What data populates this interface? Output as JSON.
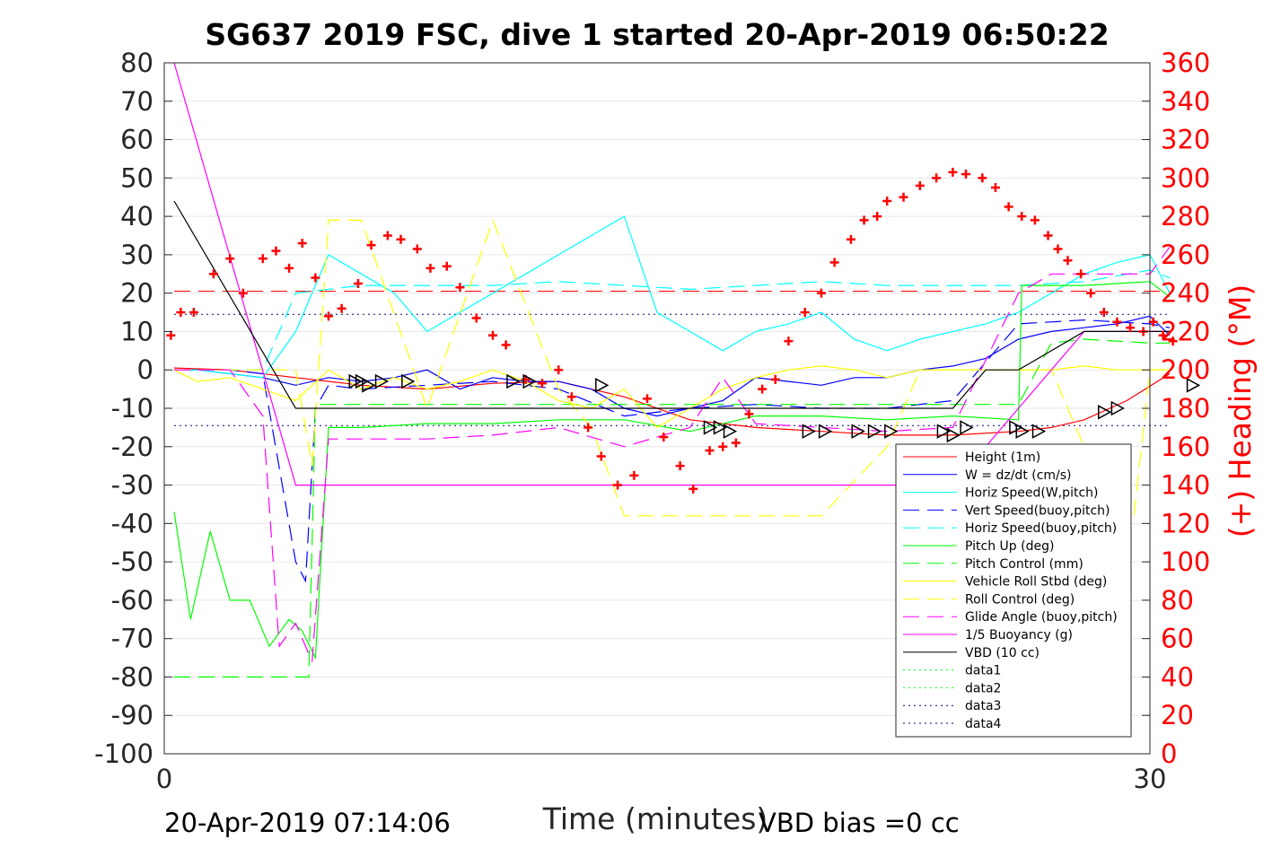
{
  "chart_data": {
    "type": "line",
    "title": "SG637 2019 FSC, dive 1 started 20-Apr-2019 06:50:22",
    "xlabel": "Time (minutes)",
    "ylabel_right": "(+) Heading (°M)",
    "xlim": [
      0,
      30
    ],
    "ylim_left": [
      -100,
      80
    ],
    "ylim_right": [
      0,
      360
    ],
    "x_ticks": [
      "0",
      "30"
    ],
    "y_ticks_left": [
      "80",
      "70",
      "60",
      "50",
      "40",
      "30",
      "20",
      "10",
      "0",
      "-10",
      "-20",
      "-30",
      "-40",
      "-50",
      "-60",
      "-70",
      "-80",
      "-90",
      "-100"
    ],
    "y_ticks_right": [
      "360",
      "340",
      "320",
      "300",
      "280",
      "260",
      "240",
      "220",
      "200",
      "180",
      "160",
      "140",
      "120",
      "100",
      "80",
      "60",
      "40",
      "20",
      "0"
    ],
    "grid": true,
    "legend_placement": "lower-right",
    "footer_left": "20-Apr-2019 07:14:06",
    "footer_right": "VBD bias =0 cc",
    "series": [
      {
        "name": "Height (1m)",
        "color": "#ff0000",
        "style": "solid",
        "x": [
          0.3,
          2,
          4,
          6,
          8,
          10,
          12,
          14,
          16,
          18,
          20,
          21,
          22,
          24,
          26,
          27,
          28,
          29.3,
          30.6
        ],
        "y": [
          0.5,
          0,
          -2,
          -4,
          -5,
          -3.5,
          -3,
          -7,
          -13,
          -15,
          -16,
          -16.5,
          -17,
          -17,
          -16,
          -15,
          -13,
          -8,
          -1
        ]
      },
      {
        "name": "W = dz/dt (cm/s)",
        "color": "#0000ff",
        "style": "solid",
        "x": [
          0.3,
          1,
          2,
          3,
          4,
          5,
          6,
          7,
          8,
          9,
          10,
          11,
          12,
          13,
          14,
          15,
          16,
          17,
          18,
          19,
          20,
          21,
          22,
          23,
          24,
          25,
          26,
          27,
          28,
          29,
          30,
          30.6
        ],
        "y": [
          0,
          0,
          -1,
          -2,
          -4,
          -2,
          -3,
          -2,
          0,
          -5,
          -2,
          -3,
          -3,
          -5,
          -10,
          -12,
          -10,
          -8,
          -2,
          -3,
          -4,
          -2,
          -2,
          0,
          1,
          3,
          8,
          10,
          11,
          12,
          14,
          9
        ]
      },
      {
        "name": "Horiz Speed(W,pitch)",
        "color": "#00ffff",
        "style": "solid",
        "x": [
          0.3,
          1,
          2,
          3,
          4,
          5,
          6,
          7,
          8,
          9,
          10,
          11,
          12,
          13,
          14,
          15,
          16,
          17,
          18,
          19,
          20,
          21,
          22,
          23,
          24,
          25,
          26,
          27,
          28,
          29,
          30,
          30.6
        ],
        "y": [
          0,
          0,
          -1,
          -2,
          10,
          30,
          25,
          20,
          10,
          15,
          20,
          25,
          30,
          35,
          40,
          15,
          10,
          5,
          10,
          12,
          15,
          8,
          5,
          8,
          10,
          12,
          15,
          20,
          25,
          28,
          30,
          20
        ]
      },
      {
        "name": "Vert Speed(buoy,pitch)",
        "color": "#0000ff",
        "style": "dashed",
        "x": [
          0.3,
          2,
          3,
          4,
          4.3,
          4.6,
          5,
          6,
          8,
          10,
          12,
          14,
          16,
          18,
          20,
          22,
          24,
          26,
          28,
          30,
          30.6
        ],
        "y": [
          0,
          0,
          -1,
          -50,
          -55,
          -10,
          -4,
          -5,
          -4,
          -3,
          -5,
          -12,
          -10,
          -9,
          -10,
          -10,
          -8,
          12,
          13,
          12,
          11
        ]
      },
      {
        "name": "Horiz Speed(buoy,pitch)",
        "color": "#00ffff",
        "style": "dashed",
        "x": [
          0.3,
          2,
          3,
          4,
          6,
          8,
          10,
          12,
          14,
          16,
          18,
          20,
          22,
          24,
          26,
          28,
          30,
          30.6
        ],
        "y": [
          0,
          0,
          0,
          20,
          22,
          22,
          22,
          23,
          22,
          21,
          22,
          23,
          22,
          22,
          22,
          23,
          26,
          24
        ]
      },
      {
        "name": "Pitch Up (deg)",
        "color": "#00ff00",
        "style": "solid",
        "x": [
          0.3,
          0.8,
          1.4,
          2,
          2.6,
          3.2,
          3.8,
          4.2,
          4.6,
          5,
          6,
          8,
          10,
          12,
          14,
          16,
          18,
          20,
          22,
          24,
          26,
          26.1,
          28,
          30,
          30.6
        ],
        "y": [
          -37,
          -65,
          -42,
          -60,
          -60,
          -72,
          -65,
          -68,
          -75,
          -15,
          -15,
          -14,
          -14,
          -13,
          -13,
          -16,
          -12,
          -12,
          -13,
          -12,
          -13,
          22,
          22,
          23,
          19
        ]
      },
      {
        "name": "Pitch Control (mm)",
        "color": "#00ff00",
        "style": "dashed",
        "x": [
          0.3,
          2,
          4,
          4.4,
          4.6,
          6,
          8,
          10,
          12,
          14,
          16,
          18,
          20,
          24,
          26,
          27,
          28,
          30,
          30.6
        ],
        "y": [
          -80,
          -80,
          -80,
          -80,
          -9,
          -9,
          -9,
          -9,
          -9,
          -9,
          -9,
          -9,
          -9,
          -9,
          -9,
          7,
          8,
          7,
          7
        ]
      },
      {
        "name": "Vehicle Roll Stbd (deg)",
        "color": "#ffff00",
        "style": "solid",
        "x": [
          0.3,
          1,
          2,
          3,
          4,
          5,
          6,
          7,
          8,
          9,
          10,
          11,
          12,
          13,
          14,
          15,
          16,
          17,
          18,
          19,
          20,
          21,
          22,
          23,
          24,
          25,
          26,
          27,
          28,
          29,
          30,
          30.6
        ],
        "y": [
          0,
          -3,
          -2,
          -5,
          -8,
          0,
          -5,
          -2,
          -5,
          -3,
          0,
          -3,
          -8,
          -10,
          -5,
          -15,
          -10,
          -5,
          -2,
          0,
          1,
          0,
          -2,
          0,
          0,
          0,
          0,
          0,
          1,
          0,
          0,
          0
        ]
      },
      {
        "name": "Roll Control (deg)",
        "color": "#ffff00",
        "style": "dashed",
        "x": [
          0.3,
          2,
          4,
          4.5,
          5,
          6,
          8,
          10,
          12,
          13,
          14,
          16,
          18,
          20,
          22,
          23,
          24,
          26,
          27,
          28,
          29,
          29.5,
          30,
          30.6
        ],
        "y": [
          0,
          0,
          0,
          -25,
          39,
          39,
          -10,
          39,
          -5,
          -15,
          -38,
          -38,
          -38,
          -38,
          -20,
          0,
          0,
          0,
          0,
          -20,
          -39,
          -39,
          0,
          0
        ]
      },
      {
        "name": "Glide Angle (buoy,pitch)",
        "color": "#ff00ff",
        "style": "dashed",
        "x": [
          0.3,
          2,
          3,
          3.5,
          4,
          4.5,
          5,
          6,
          8,
          10,
          12,
          14,
          16,
          17,
          18,
          20,
          22,
          24,
          26,
          27,
          28,
          29,
          30,
          30.6
        ],
        "y": [
          0,
          0,
          -12,
          -72,
          -66,
          -76,
          -18,
          -18,
          -18,
          -17,
          -15,
          -20,
          -15,
          -2,
          -14,
          -15,
          -16,
          -15,
          20,
          25,
          25,
          25,
          25,
          32
        ]
      },
      {
        "name": "1/5 Buoyancy (g)",
        "color": "#ff00ff",
        "style": "solid",
        "x": [
          0.3,
          4,
          5,
          10,
          15,
          20,
          22,
          24,
          26,
          28,
          30,
          30.6
        ],
        "y": [
          80,
          -30,
          -30,
          -30,
          -30,
          -30,
          -30,
          -30,
          -10,
          10,
          10,
          10
        ]
      },
      {
        "name": "VBD (10 cc)",
        "color": "#000000",
        "style": "solid",
        "x": [
          0.3,
          4,
          5,
          10,
          15,
          20,
          22,
          24,
          25,
          26,
          28,
          30,
          30.6
        ],
        "y": [
          44,
          -10,
          -10,
          -10,
          -10,
          -10,
          -10,
          -10,
          0,
          0,
          10,
          10,
          10
        ]
      },
      {
        "name": "data1",
        "color": "#00ff00",
        "style": "dotted",
        "x": [],
        "y": []
      },
      {
        "name": "data2",
        "color": "#00ff00",
        "style": "dotted",
        "x": [],
        "y": []
      },
      {
        "name": "data3",
        "color": "#000080",
        "style": "dotted",
        "x": [],
        "y": []
      },
      {
        "name": "data4",
        "color": "#000080",
        "style": "dotted",
        "x": [],
        "y": []
      }
    ],
    "reference_lines": [
      {
        "color": "#ff0000",
        "style": "dashed",
        "y": 20.5,
        "x": [
          0.3,
          30.6
        ]
      },
      {
        "color": "#000080",
        "style": "dotted",
        "y": 14.5,
        "x": [
          0.3,
          30.6
        ]
      },
      {
        "color": "#000080",
        "style": "dotted",
        "y": -14.5,
        "x": [
          0.3,
          30.6
        ]
      }
    ],
    "heading": {
      "color": "#ff0000",
      "x": [
        0.2,
        0.5,
        0.9,
        1.5,
        2,
        2.4,
        3,
        3.4,
        3.8,
        4.2,
        4.6,
        5,
        5.4,
        5.9,
        6.3,
        6.8,
        7.2,
        7.7,
        8.1,
        8.6,
        9,
        9.5,
        10,
        10.4,
        11,
        11.5,
        12,
        12.4,
        12.9,
        13.3,
        13.8,
        14.3,
        14.7,
        15.2,
        15.7,
        16.1,
        16.6,
        17,
        17.4,
        17.8,
        18.2,
        18.6,
        19,
        19.5,
        20,
        20.4,
        20.9,
        21.3,
        21.7,
        22,
        22.5,
        23,
        23.5,
        24,
        24.4,
        24.9,
        25.3,
        25.7,
        26.1,
        26.5,
        26.9,
        27.2,
        27.5,
        27.9,
        28.2,
        28.6,
        29,
        29.4,
        29.8,
        30.1,
        30.4,
        30.7
      ],
      "y": [
        218,
        230,
        230,
        250,
        258,
        240,
        258,
        262,
        253,
        266,
        248,
        228,
        232,
        245,
        265,
        270,
        268,
        263,
        253,
        254,
        243,
        227,
        218,
        213,
        195,
        193,
        200,
        186,
        170,
        155,
        140,
        145,
        185,
        165,
        150,
        138,
        158,
        160,
        162,
        177,
        190,
        195,
        215,
        230,
        240,
        256,
        268,
        278,
        280,
        288,
        290,
        296,
        300,
        303,
        302,
        300,
        295,
        285,
        280,
        278,
        270,
        263,
        257,
        250,
        240,
        230,
        225,
        222,
        220,
        225,
        218,
        215
      ]
    },
    "markers_right": {
      "color": "#000000",
      "x": [
        5.8,
        6.0,
        6.2,
        6.6,
        7.4,
        10.6,
        11.1,
        13.3,
        16.6,
        16.9,
        17.2,
        19.6,
        20.1,
        21.1,
        21.6,
        22.1,
        23.7,
        24.0,
        24.4,
        25.9,
        26.1,
        26.6,
        28.6,
        29.0,
        31.3
      ],
      "y": [
        -3,
        -3,
        -4,
        -3,
        -3,
        -3,
        -3,
        -4,
        -15,
        -15,
        -16,
        -16,
        -16,
        -16,
        -16,
        -16,
        -16,
        -17,
        -15,
        -15,
        -16,
        -16,
        -11,
        -10,
        -4
      ]
    }
  }
}
